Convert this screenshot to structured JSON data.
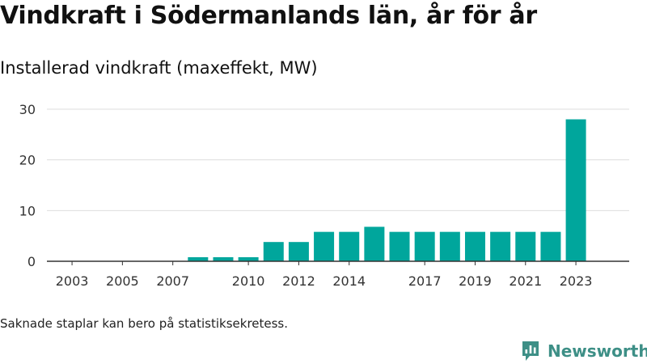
{
  "title": "Vindkraft i Södermanlands län, år för år",
  "subtitle": "Installerad vindkraft (maxeffekt, MW)",
  "footnote": "Saknade staplar kan bero på statistiksekretess.",
  "brand": {
    "name": "Newsworthy",
    "icon": "newsworthy-logo-icon",
    "color": "#3d8f86"
  },
  "chart_data": {
    "type": "bar",
    "categories": [
      "2003",
      "2004",
      "2005",
      "2006",
      "2007",
      "2008",
      "2009",
      "2010",
      "2011",
      "2012",
      "2013",
      "2014",
      "2015",
      "2016",
      "2017",
      "2018",
      "2019",
      "2020",
      "2021",
      "2022",
      "2023"
    ],
    "values": [
      0,
      0,
      0,
      0,
      0,
      0.8,
      0.8,
      0.8,
      3.8,
      3.8,
      5.8,
      5.8,
      6.8,
      5.8,
      5.8,
      5.8,
      5.8,
      5.8,
      5.8,
      5.8,
      28
    ],
    "x_tick_labels": [
      "2003",
      "2005",
      "2007",
      "2010",
      "2012",
      "2014",
      "2017",
      "2019",
      "2021",
      "2023"
    ],
    "y_ticks": [
      0,
      10,
      20,
      30
    ],
    "ylim": [
      0,
      30
    ],
    "bar_color": "#00a69c",
    "grid": true,
    "legend": false
  }
}
